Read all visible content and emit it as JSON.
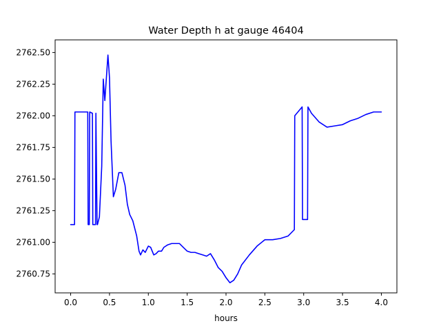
{
  "chart_data": {
    "type": "line",
    "title": "Water Depth h at gauge 46404",
    "xlabel": "hours",
    "ylabel": "",
    "xlim": [
      -0.2,
      4.2
    ],
    "ylim": [
      2760.6,
      2762.6
    ],
    "xticks": [
      0.0,
      0.5,
      1.0,
      1.5,
      2.0,
      2.5,
      3.0,
      3.5,
      4.0
    ],
    "xtick_labels": [
      "0.0",
      "0.5",
      "1.0",
      "1.5",
      "2.0",
      "2.5",
      "3.0",
      "3.5",
      "4.0"
    ],
    "yticks": [
      2760.75,
      2761.0,
      2761.25,
      2761.5,
      2761.75,
      2762.0,
      2762.25,
      2762.5
    ],
    "ytick_labels": [
      "2760.75",
      "2761.00",
      "2761.25",
      "2761.50",
      "2761.75",
      "2762.00",
      "2762.25",
      "2762.50"
    ],
    "grid": false,
    "series": [
      {
        "color": "#0000ff",
        "x": [
          0.0,
          0.05,
          0.055,
          0.22,
          0.225,
          0.24,
          0.245,
          0.28,
          0.285,
          0.32,
          0.325,
          0.34,
          0.345,
          0.37,
          0.4,
          0.42,
          0.44,
          0.46,
          0.48,
          0.5,
          0.52,
          0.55,
          0.58,
          0.62,
          0.66,
          0.7,
          0.73,
          0.76,
          0.8,
          0.85,
          0.88,
          0.9,
          0.93,
          0.96,
          1.0,
          1.03,
          1.07,
          1.1,
          1.13,
          1.17,
          1.2,
          1.25,
          1.3,
          1.35,
          1.4,
          1.45,
          1.5,
          1.55,
          1.6,
          1.65,
          1.7,
          1.75,
          1.8,
          1.85,
          1.9,
          1.95,
          2.0,
          2.05,
          2.1,
          2.15,
          2.2,
          2.3,
          2.4,
          2.5,
          2.55,
          2.6,
          2.7,
          2.8,
          2.88,
          2.885,
          2.98,
          2.985,
          3.02,
          3.05,
          3.055,
          3.1,
          3.2,
          3.3,
          3.4,
          3.5,
          3.6,
          3.7,
          3.8,
          3.9,
          3.95,
          4.0
        ],
        "values": [
          2761.14,
          2761.14,
          2762.03,
          2762.03,
          2761.14,
          2761.14,
          2762.03,
          2762.02,
          2761.14,
          2761.14,
          2762.02,
          2761.14,
          2761.14,
          2761.2,
          2761.6,
          2762.29,
          2762.12,
          2762.3,
          2762.48,
          2762.3,
          2761.8,
          2761.36,
          2761.42,
          2761.55,
          2761.55,
          2761.45,
          2761.3,
          2761.22,
          2761.17,
          2761.05,
          2760.93,
          2760.9,
          2760.94,
          2760.92,
          2760.97,
          2760.96,
          2760.9,
          2760.91,
          2760.93,
          2760.93,
          2760.96,
          2760.98,
          2760.99,
          2760.99,
          2760.99,
          2760.96,
          2760.93,
          2760.92,
          2760.92,
          2760.91,
          2760.9,
          2760.89,
          2760.91,
          2760.86,
          2760.8,
          2760.77,
          2760.72,
          2760.68,
          2760.7,
          2760.75,
          2760.82,
          2760.9,
          2760.97,
          2761.02,
          2761.02,
          2761.02,
          2761.03,
          2761.05,
          2761.1,
          2762.0,
          2762.07,
          2761.18,
          2761.18,
          2761.18,
          2762.07,
          2762.02,
          2761.95,
          2761.91,
          2761.92,
          2761.93,
          2761.96,
          2761.98,
          2762.01,
          2762.03,
          2762.03,
          2762.03
        ]
      }
    ]
  }
}
